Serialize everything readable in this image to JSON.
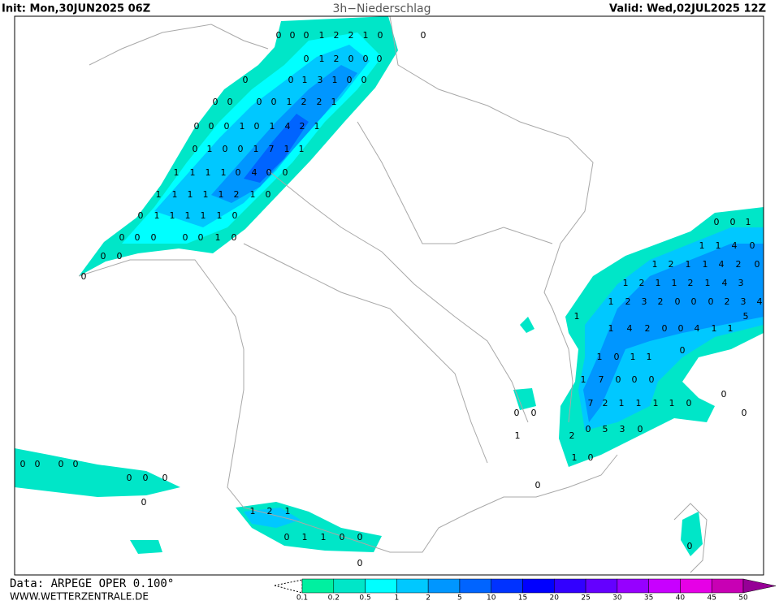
{
  "header": {
    "init": "Init: Mon,30JUN2025 06Z",
    "title": "3h−Niederschlag",
    "valid": "Valid: Wed,02JUL2025 12Z"
  },
  "footer": {
    "data": "Data: ARPEGE OPER 0.100°",
    "site": "WWW.WETTERZENTRALE.DE"
  },
  "legend": {
    "colors": [
      "#00f0a0",
      "#00e6c8",
      "#00ffff",
      "#00c8ff",
      "#0096ff",
      "#0064ff",
      "#0032ff",
      "#0000ff",
      "#3200ff",
      "#6400ff",
      "#9600ff",
      "#c800ff",
      "#e600e6",
      "#c800b4",
      "#960096"
    ],
    "labels": [
      0.1,
      0.2,
      0.5,
      1,
      2,
      5,
      10,
      15,
      20,
      25,
      30,
      35,
      40,
      45,
      50
    ]
  },
  "map_labels": [
    [
      "0",
      "0",
      "0",
      "1",
      "2",
      "2",
      "1",
      "0",
      "0"
    ],
    [
      "0",
      "1",
      "2",
      "0",
      "0",
      "0"
    ],
    [
      "0",
      "0",
      "1",
      "3",
      "1",
      "0",
      "0"
    ],
    [
      "0",
      "0",
      "0",
      "0",
      "1",
      "2",
      "2",
      "1"
    ],
    [
      "0",
      "0",
      "0",
      "1",
      "0",
      "1",
      "4",
      "2",
      "1"
    ],
    [
      "0",
      "1",
      "0",
      "0",
      "1",
      "7",
      "1",
      "1"
    ],
    [
      "1",
      "1",
      "1",
      "1",
      "0",
      "4",
      "0",
      "0"
    ],
    [
      "1",
      "1",
      "1",
      "1",
      "1",
      "2",
      "1",
      "0"
    ],
    [
      "0",
      "1",
      "1",
      "1",
      "1",
      "1",
      "0"
    ],
    [
      "0",
      "0",
      "0",
      "0",
      "0",
      "1",
      "0"
    ],
    [
      "0",
      "0"
    ],
    [
      "0"
    ],
    [
      "0",
      "0",
      "1"
    ],
    [
      "1",
      "1",
      "4",
      "0"
    ],
    [
      "1",
      "2",
      "1",
      "1",
      "4",
      "2",
      "0"
    ],
    [
      "1",
      "2",
      "1",
      "1",
      "2",
      "1",
      "4",
      "3"
    ],
    [
      "1",
      "2",
      "3",
      "2",
      "0",
      "0",
      "0",
      "2",
      "3",
      "4"
    ],
    [
      "1",
      "5"
    ],
    [
      "1",
      "4",
      "2",
      "0",
      "0",
      "4",
      "1",
      "1"
    ],
    [
      "0"
    ],
    [
      "1",
      "0",
      "1",
      "1"
    ],
    [
      "1",
      "7",
      "0",
      "0",
      "0"
    ],
    [
      "0"
    ],
    [
      "7",
      "2",
      "1",
      "1",
      "1",
      "1",
      "0"
    ],
    [
      "0",
      "0",
      "0"
    ],
    [
      "0",
      "5",
      "3",
      "0"
    ],
    [
      "2",
      "1"
    ],
    [
      "1",
      "0"
    ],
    [
      "0"
    ],
    [
      "0"
    ],
    [
      "0",
      "0",
      "0",
      "0"
    ],
    [
      "0",
      "0",
      "0"
    ],
    [
      "0"
    ],
    [
      "1",
      "2",
      "1"
    ],
    [
      "0",
      "1",
      "1",
      "0",
      "0"
    ],
    [
      "0"
    ]
  ]
}
